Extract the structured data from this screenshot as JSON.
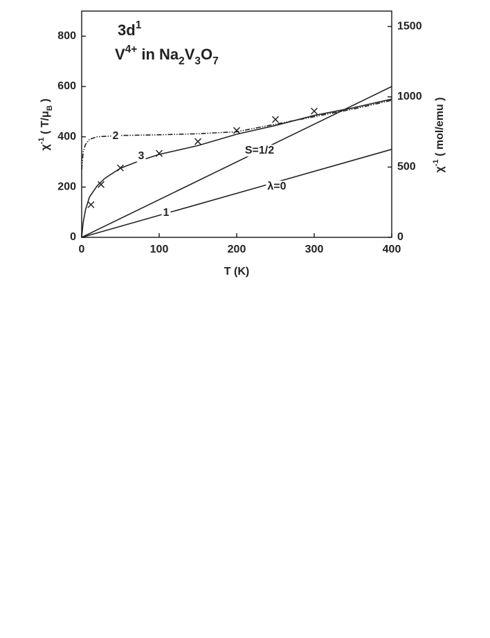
{
  "chart_data": {
    "type": "line",
    "title_lines": [
      [
        {
          "text": "3d"
        },
        {
          "text": "1",
          "script": "sup"
        }
      ],
      [
        {
          "text": "V"
        },
        {
          "text": "4+",
          "script": "sup"
        },
        {
          "text": " in Na"
        },
        {
          "text": "2",
          "script": "sub"
        },
        {
          "text": "V"
        },
        {
          "text": "3",
          "script": "sub"
        },
        {
          "text": "O"
        },
        {
          "text": "7",
          "script": "sub"
        }
      ]
    ],
    "xlabel": "T (K)",
    "ylabel": [
      {
        "text": "χ"
      },
      {
        "text": "-1",
        "script": "sup"
      },
      {
        "text": " ( T/μ"
      },
      {
        "text": "B",
        "script": "sub"
      },
      {
        "text": " )"
      }
    ],
    "y2label": [
      {
        "text": "χ"
      },
      {
        "text": "-1",
        "script": "sup"
      },
      {
        "text": " ( mol/emu )"
      }
    ],
    "xlim": [
      0,
      400
    ],
    "xticks": [
      0,
      100,
      200,
      300,
      400
    ],
    "ylim": [
      0,
      900
    ],
    "yticks": [
      0,
      200,
      400,
      600,
      800
    ],
    "y2lim": [
      0,
      1610
    ],
    "y2ticks": [
      0,
      500,
      1000,
      1500
    ],
    "annotations": [
      "λ=0"
    ],
    "series": [
      {
        "name": "S=1/2",
        "color": "#222222",
        "linestyle": "solid",
        "x": [
          0,
          400
        ],
        "values": [
          0,
          600
        ]
      },
      {
        "name": "1",
        "color": "#222222",
        "linestyle": "solid",
        "x": [
          0,
          400
        ],
        "values": [
          0,
          350
        ]
      },
      {
        "name": "2",
        "color": "#222222",
        "linestyle": "dashdot",
        "x": [
          0,
          2,
          5,
          10,
          20,
          50,
          100,
          150,
          200,
          250,
          300,
          350,
          400
        ],
        "values": [
          270,
          340,
          370,
          390,
          400,
          405,
          408,
          412,
          420,
          450,
          480,
          510,
          545
        ]
      },
      {
        "name": "3",
        "color": "#222222",
        "linestyle": "solid",
        "x": [
          0,
          2,
          5,
          10,
          20,
          30,
          50,
          75,
          100,
          150,
          200,
          250,
          300,
          350,
          400
        ],
        "values": [
          0,
          60,
          110,
          160,
          205,
          235,
          275,
          305,
          330,
          365,
          410,
          445,
          485,
          515,
          550
        ]
      },
      {
        "color": "#222222",
        "marker": "x",
        "x": [
          12,
          25,
          50,
          100,
          150,
          200,
          250,
          300
        ],
        "values": [
          130,
          210,
          276,
          334,
          381,
          425,
          469,
          502
        ]
      }
    ]
  }
}
